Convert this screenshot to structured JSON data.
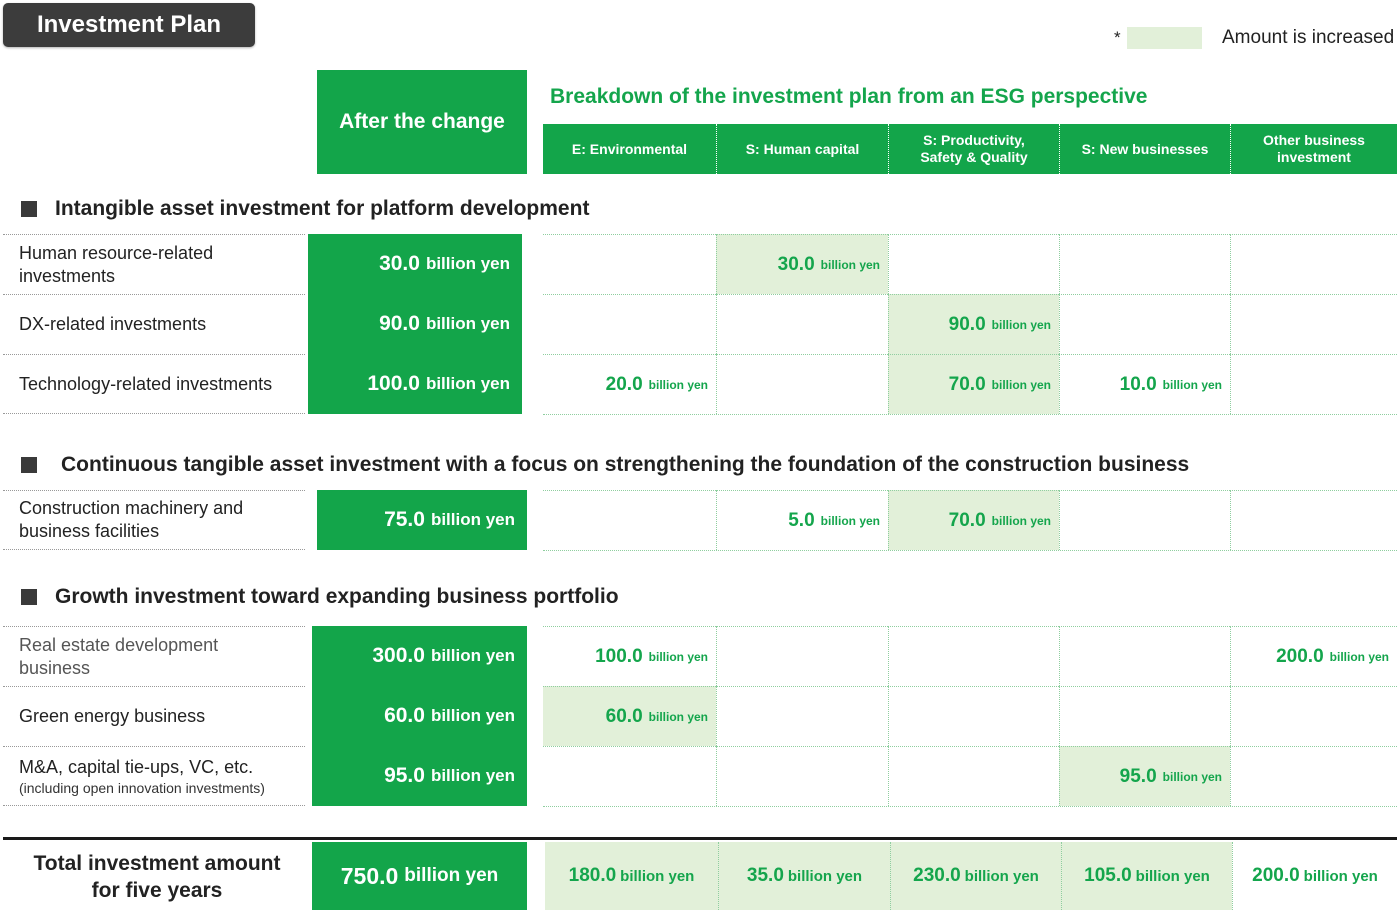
{
  "title": "Investment Plan",
  "legend": {
    "asterisk": "*",
    "text": "Amount is increased",
    "highlight_color": "#e2f0d9"
  },
  "after_change_header": "After the change",
  "breakdown_title": "Breakdown of the investment plan from an ESG perspective",
  "columns": [
    "E: Environmental",
    "S: Human capital",
    "S: Productivity,\nSafety & Quality",
    "S: New businesses",
    "Other business\ninvestment"
  ],
  "unit": "billion yen",
  "sections": [
    {
      "heading": "Intangible asset investment for platform development",
      "rows": [
        {
          "label": "Human resource-related\ninvestments",
          "sub": "",
          "amount": "30.0",
          "cells": [
            "",
            "30.0",
            "",
            "",
            ""
          ],
          "highlight": [
            false,
            true,
            false,
            false,
            false
          ]
        },
        {
          "label": "DX-related investments",
          "sub": "",
          "amount": "90.0",
          "cells": [
            "",
            "",
            "90.0",
            "",
            ""
          ],
          "highlight": [
            false,
            false,
            true,
            false,
            false
          ]
        },
        {
          "label": "Technology-related investments",
          "sub": "",
          "amount": "100.0",
          "cells": [
            "20.0",
            "",
            "70.0",
            "10.0",
            ""
          ],
          "highlight": [
            false,
            false,
            true,
            false,
            false
          ]
        }
      ]
    },
    {
      "heading": "Continuous tangible asset investment with a focus on strengthening the foundation of the construction business",
      "rows": [
        {
          "label": "Construction machinery and\nbusiness facilities",
          "sub": "",
          "amount": "75.0",
          "cells": [
            "",
            "5.0",
            "70.0",
            "",
            ""
          ],
          "highlight": [
            false,
            false,
            true,
            false,
            false
          ]
        }
      ]
    },
    {
      "heading": "Growth investment toward expanding business portfolio",
      "rows": [
        {
          "label": "Real estate development\nbusiness",
          "sub": "",
          "amount": "300.0",
          "cells": [
            "100.0",
            "",
            "",
            "",
            "200.0"
          ],
          "highlight": [
            false,
            false,
            false,
            false,
            false
          ]
        },
        {
          "label": "Green energy business",
          "sub": "",
          "amount": "60.0",
          "cells": [
            "60.0",
            "",
            "",
            "",
            ""
          ],
          "highlight": [
            true,
            false,
            false,
            false,
            false
          ]
        },
        {
          "label": "M&A, capital tie-ups, VC, etc.",
          "sub": "(including open innovation investments)",
          "amount": "95.0",
          "cells": [
            "",
            "",
            "",
            "95.0",
            ""
          ],
          "highlight": [
            false,
            false,
            false,
            true,
            false
          ]
        }
      ]
    }
  ],
  "total": {
    "label": "Total investment amount\nfor five years",
    "amount": "750.0",
    "cells": [
      "180.0",
      "35.0",
      "230.0",
      "105.0",
      "200.0"
    ],
    "highlight": [
      true,
      true,
      true,
      true,
      false
    ]
  },
  "colors": {
    "green": "#13a54a",
    "green_text": "#14a54c",
    "dark": "#3c3c3c"
  }
}
